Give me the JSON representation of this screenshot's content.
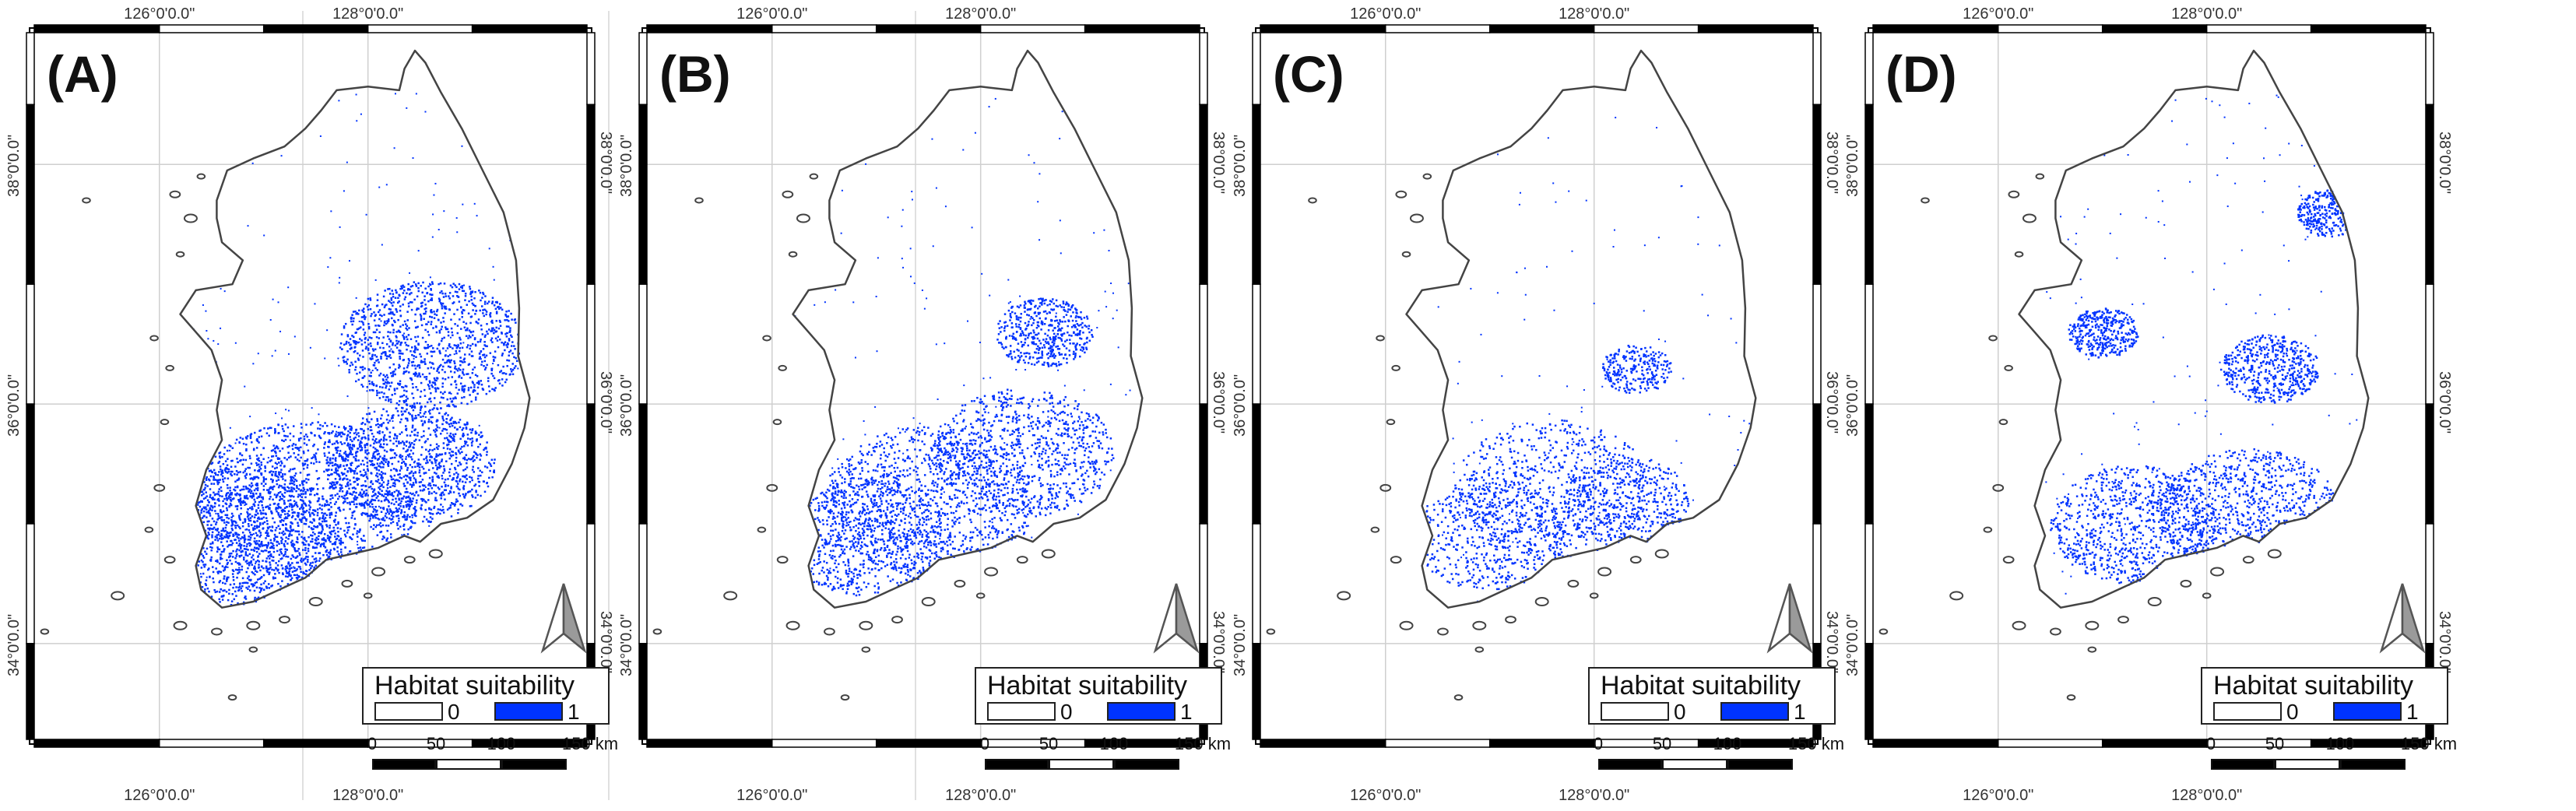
{
  "figure": {
    "panels": [
      {
        "id": "A",
        "label": "(A)",
        "suitable_density": 1.0,
        "hotspots": [
          [
            127.4,
            35.2,
            1.6
          ],
          [
            128.6,
            36.5,
            1.3
          ],
          [
            126.8,
            34.9,
            1.4
          ],
          [
            128.4,
            35.5,
            1.2
          ]
        ]
      },
      {
        "id": "B",
        "label": "(B)",
        "suitable_density": 0.75,
        "hotspots": [
          [
            127.5,
            35.2,
            1.5
          ],
          [
            128.4,
            35.6,
            1.3
          ],
          [
            126.9,
            34.9,
            1.2
          ],
          [
            128.6,
            36.6,
            0.7
          ]
        ]
      },
      {
        "id": "C",
        "label": "(C)",
        "suitable_density": 0.55,
        "hotspots": [
          [
            127.6,
            35.3,
            1.4
          ],
          [
            127.0,
            34.9,
            1.1
          ],
          [
            128.3,
            35.2,
            0.9
          ],
          [
            128.4,
            36.3,
            0.5
          ]
        ]
      },
      {
        "id": "D",
        "label": "(D)",
        "suitable_density": 0.8,
        "hotspots": [
          [
            127.3,
            35.0,
            1.2
          ],
          [
            128.4,
            35.1,
            1.3
          ],
          [
            128.6,
            36.3,
            0.7
          ],
          [
            129.2,
            37.6,
            0.5
          ],
          [
            127.0,
            36.6,
            0.5
          ]
        ]
      }
    ]
  },
  "graticule": {
    "lon_labels": [
      "126°0'0.0\"",
      "128°0'0.0\""
    ],
    "lat_labels": [
      "38°0'0.0\"",
      "36°0'0.0\"",
      "34°0'0.0\""
    ]
  },
  "legend": {
    "title": "Habitat suitability",
    "classes": [
      {
        "label": "0",
        "color": "#ffffff"
      },
      {
        "label": "1",
        "color": "#0033ff"
      }
    ]
  },
  "scale_bar": {
    "ticks": [
      "0",
      "50",
      "100",
      "150 km"
    ]
  },
  "colors": {
    "suitable": "#0033ff",
    "coastline": "#444444",
    "graticule": "#cfcfcf",
    "frame": "#000000"
  },
  "icons": [
    "north-arrow-icon"
  ]
}
